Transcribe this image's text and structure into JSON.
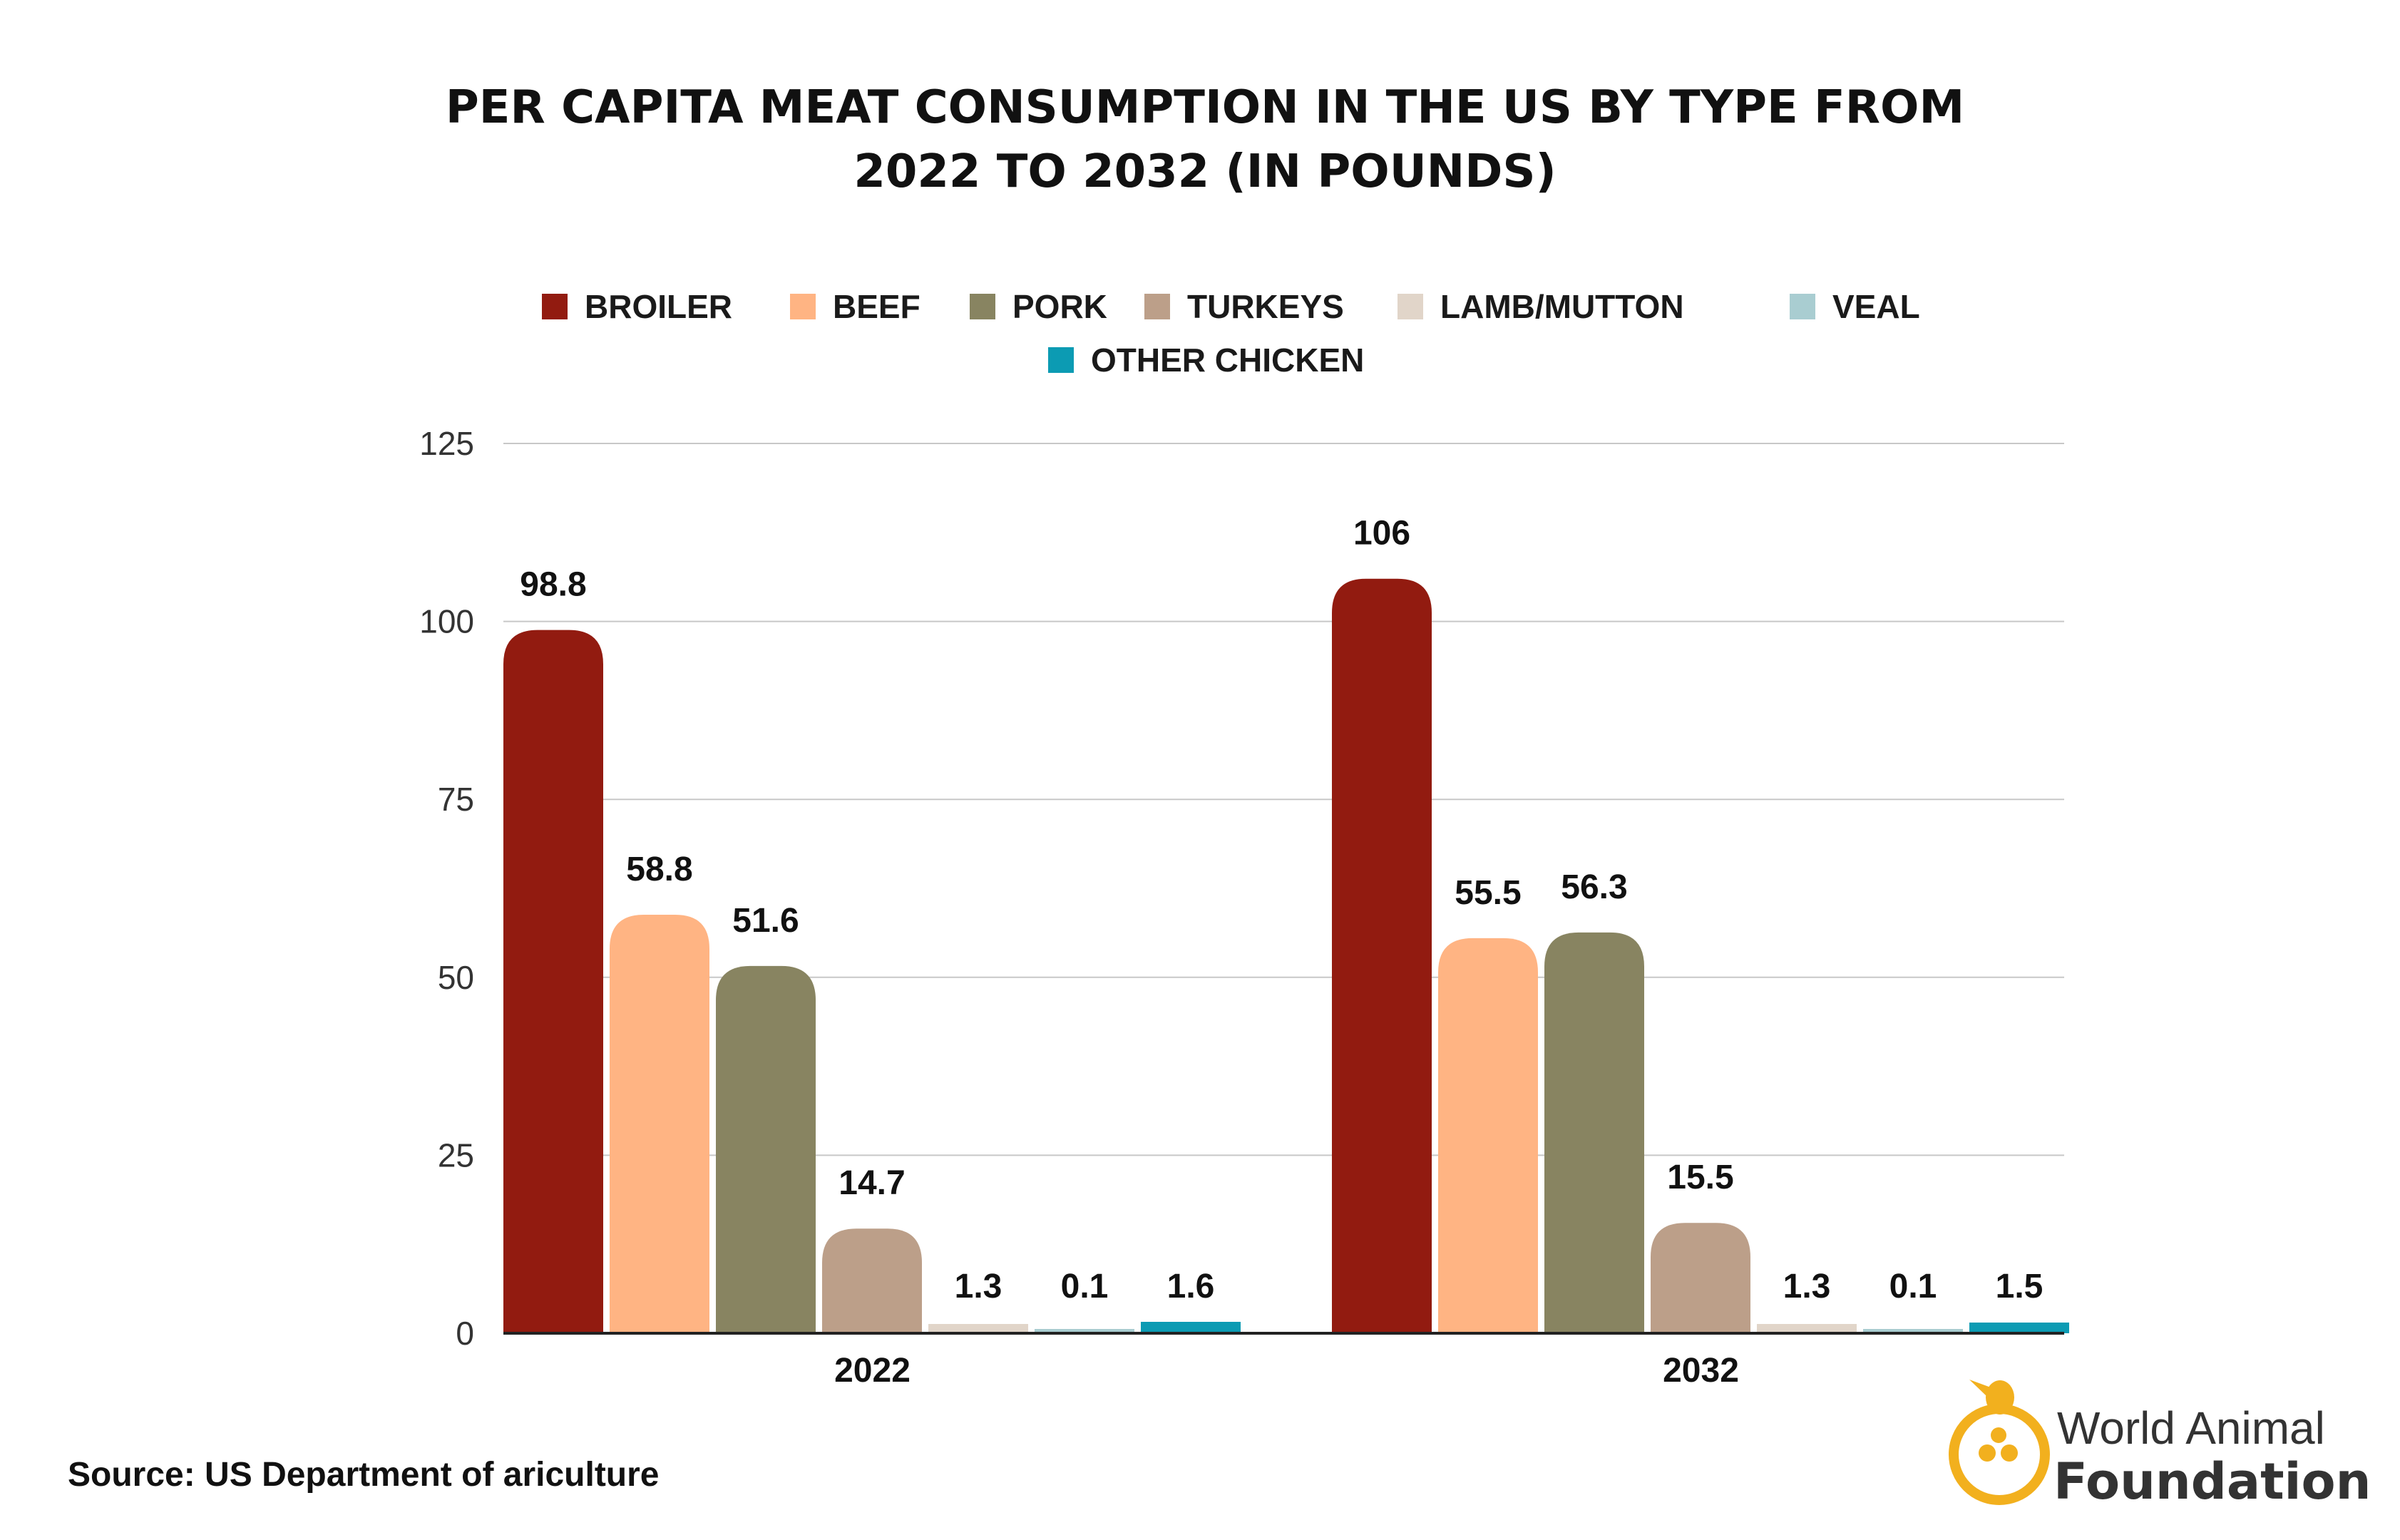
{
  "chart_data": {
    "type": "bar",
    "title_lines": [
      "PER CAPITA MEAT CONSUMPTION IN THE US BY TYPE FROM",
      "2022 TO 2032 (IN POUNDS)"
    ],
    "categories": [
      "2022",
      "2032"
    ],
    "series": [
      {
        "name": "BROILER",
        "color": "#921b10",
        "values": [
          98.8,
          106
        ],
        "labels": [
          "98.8",
          "106"
        ]
      },
      {
        "name": "BEEF",
        "color": "#ffb483",
        "values": [
          58.8,
          55.5
        ],
        "labels": [
          "58.8",
          "55.5"
        ]
      },
      {
        "name": "PORK",
        "color": "#888461",
        "values": [
          51.6,
          56.3
        ],
        "labels": [
          "51.6",
          "56.3"
        ]
      },
      {
        "name": "TURKEYS",
        "color": "#bc9f89",
        "values": [
          14.7,
          15.5
        ],
        "labels": [
          "14.7",
          "15.5"
        ]
      },
      {
        "name": "LAMB/MUTTON",
        "color": "#e1d5c9",
        "values": [
          1.3,
          1.3
        ],
        "labels": [
          "1.3",
          "1.3"
        ]
      },
      {
        "name": "VEAL",
        "color": "#a9cdd1",
        "values": [
          0.1,
          0.1
        ],
        "labels": [
          "0.1",
          "0.1"
        ]
      },
      {
        "name": "OTHER CHICKEN",
        "color": "#0c9bb3",
        "values": [
          1.6,
          1.5
        ],
        "labels": [
          "1.6",
          "1.5"
        ]
      }
    ],
    "ylim": [
      0,
      125
    ],
    "yticks": [
      "0",
      "25",
      "50",
      "75",
      "100",
      "125"
    ],
    "grid": true,
    "legend_position": "top"
  },
  "source": "Source: US Department of ariculture",
  "brand": {
    "line1": "World Animal",
    "line2": "Foundation",
    "color": "#f2b01e"
  }
}
